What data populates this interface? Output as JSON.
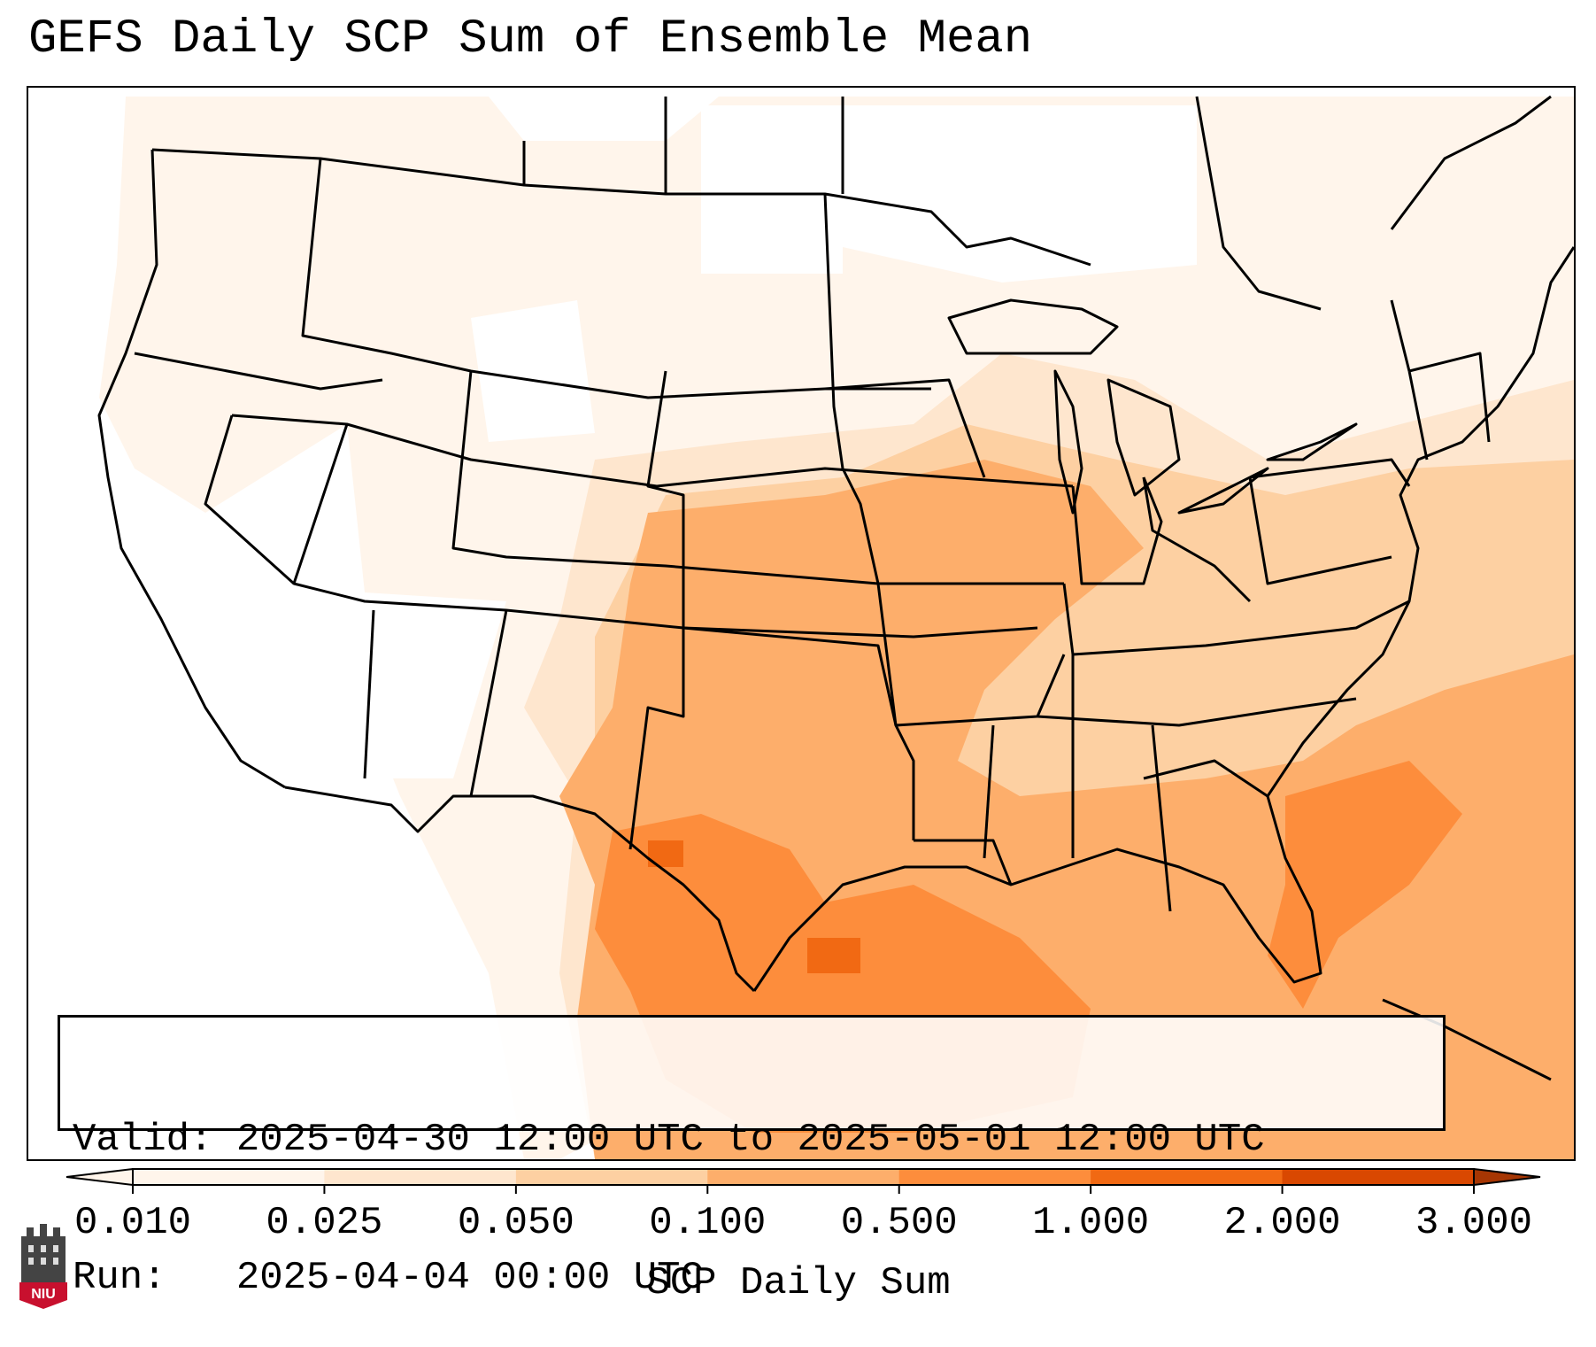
{
  "title": "GEFS Daily SCP Sum of Ensemble Mean",
  "info": {
    "valid_label": "Valid:",
    "valid_value": "2025-04-30 12:00 UTC to 2025-05-01 12:00 UTC",
    "run_label": "Run:",
    "run_value": "2025-04-04 00:00 UTC"
  },
  "colorbar": {
    "title": "SCP Daily Sum",
    "ticks": [
      "0.010",
      "0.025",
      "0.050",
      "0.100",
      "0.500",
      "1.000",
      "2.000",
      "3.000"
    ],
    "tick_values": [
      0.01,
      0.025,
      0.05,
      0.1,
      0.5,
      1.0,
      2.0,
      3.0
    ],
    "colors": [
      "#fff5eb",
      "#fee6ce",
      "#fdd0a2",
      "#fdae6b",
      "#fd8d3c",
      "#f16913",
      "#d94801",
      "#a63603"
    ],
    "extend": "both"
  },
  "map": {
    "region": "Contiguous United States",
    "projection": "Lambert Conformal"
  },
  "logo": {
    "text": "NIU",
    "color": "#c8102e"
  }
}
